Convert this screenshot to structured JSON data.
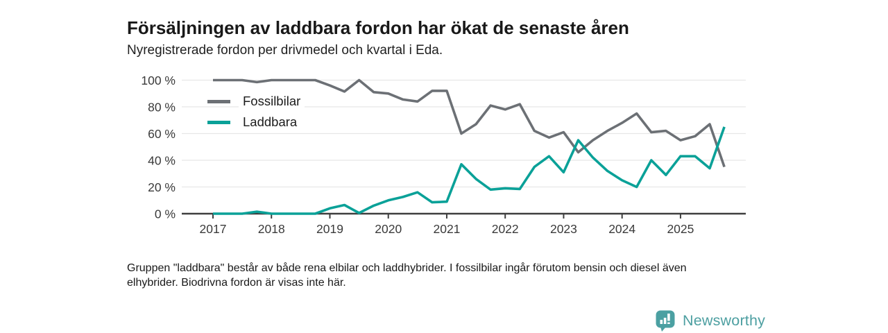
{
  "header": {
    "title": "Försäljningen av laddbara fordon har ökat de senaste åren",
    "subtitle": "Nyregistrerade fordon per drivmedel och kvartal i Eda."
  },
  "chart_data": {
    "type": "line",
    "title": "Försäljningen av laddbara fordon har ökat de senaste åren",
    "subtitle": "Nyregistrerade fordon per drivmedel och kvartal i Eda.",
    "ylabel": "",
    "xlabel": "",
    "ylim": [
      0,
      100
    ],
    "grid": true,
    "legend_position": "top-left-inside",
    "x_unit": "quarter",
    "quarters": [
      "2017-Q1",
      "2017-Q2",
      "2017-Q3",
      "2017-Q4",
      "2018-Q1",
      "2018-Q2",
      "2018-Q3",
      "2018-Q4",
      "2019-Q1",
      "2019-Q2",
      "2019-Q3",
      "2019-Q4",
      "2020-Q1",
      "2020-Q2",
      "2020-Q3",
      "2020-Q4",
      "2021-Q1",
      "2021-Q2",
      "2021-Q3",
      "2021-Q4",
      "2022-Q1",
      "2022-Q2",
      "2022-Q3",
      "2022-Q4",
      "2023-Q1",
      "2023-Q2",
      "2023-Q3",
      "2023-Q4",
      "2024-Q1",
      "2024-Q2",
      "2024-Q3",
      "2024-Q4",
      "2025-Q1",
      "2025-Q2",
      "2025-Q3",
      "2025-Q4"
    ],
    "series": [
      {
        "name": "Fossilbilar",
        "color": "#6c7075",
        "values": [
          100,
          100,
          100,
          98.5,
          100,
          100,
          100,
          100,
          96,
          91.5,
          100,
          91,
          90,
          85.5,
          84,
          92,
          92,
          60,
          67,
          81,
          78,
          82,
          62,
          57,
          61,
          46,
          55,
          62,
          68,
          75,
          61,
          62,
          55,
          58,
          67,
          35
        ]
      },
      {
        "name": "Laddbara",
        "color": "#0aa198",
        "values": [
          0,
          0,
          0,
          1.5,
          0,
          0,
          0,
          0,
          4,
          6.5,
          0.5,
          6,
          10,
          12.5,
          16,
          8.5,
          9,
          37,
          26,
          18,
          19,
          18.5,
          35,
          43,
          31,
          55,
          42,
          32,
          25,
          20,
          40,
          29,
          43,
          43,
          34,
          65
        ]
      }
    ],
    "yticks": [
      {
        "value": 0,
        "label": "0 %"
      },
      {
        "value": 20,
        "label": "20 %"
      },
      {
        "value": 40,
        "label": "40 %"
      },
      {
        "value": 60,
        "label": "60 %"
      },
      {
        "value": 80,
        "label": "80 %"
      },
      {
        "value": 100,
        "label": "100 %"
      }
    ],
    "xticks": [
      "2017",
      "2018",
      "2019",
      "2020",
      "2021",
      "2022",
      "2023",
      "2024",
      "2025"
    ]
  },
  "footnote": {
    "text": "Gruppen \"laddbara\" består av både rena elbilar och laddhybrider. I fossilbilar ingår förutom bensin och diesel även elhybrider. Biodrivna fordon är visas inte här."
  },
  "logo": {
    "text": "Newsworthy",
    "brand_color": "#4ba0a2",
    "icon": "bar-chart-speech-bubble"
  }
}
